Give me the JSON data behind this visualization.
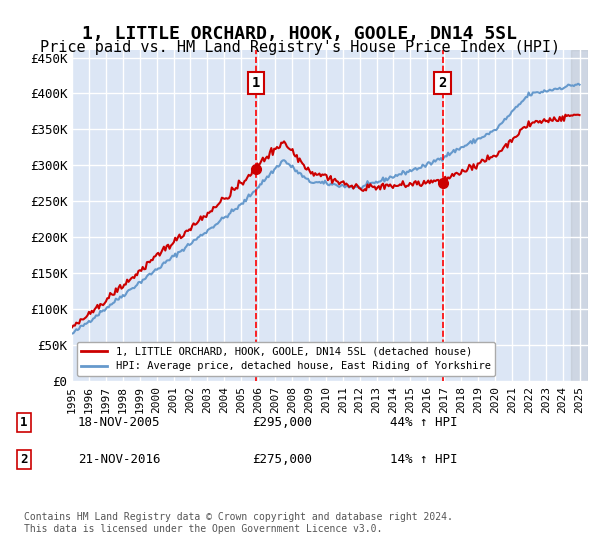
{
  "title": "1, LITTLE ORCHARD, HOOK, GOOLE, DN14 5SL",
  "subtitle": "Price paid vs. HM Land Registry's House Price Index (HPI)",
  "title_fontsize": 13,
  "subtitle_fontsize": 11,
  "ylim": [
    0,
    460000
  ],
  "yticks": [
    0,
    50000,
    100000,
    150000,
    200000,
    250000,
    300000,
    350000,
    400000,
    450000
  ],
  "ytick_labels": [
    "£0",
    "£50K",
    "£100K",
    "£150K",
    "£200K",
    "£250K",
    "£300K",
    "£350K",
    "£400K",
    "£450K"
  ],
  "xlim_start": 1995.5,
  "xlim_end": 2025.5,
  "xtick_years": [
    1995,
    1996,
    1997,
    1998,
    1999,
    2000,
    2001,
    2002,
    2003,
    2004,
    2005,
    2006,
    2007,
    2008,
    2009,
    2010,
    2011,
    2012,
    2013,
    2014,
    2015,
    2016,
    2017,
    2018,
    2019,
    2020,
    2021,
    2022,
    2023,
    2024,
    2025
  ],
  "background_color": "#ffffff",
  "plot_bg_color": "#dce6f5",
  "grid_color": "#ffffff",
  "sale1_x": 2005.88,
  "sale1_y": 295000,
  "sale2_x": 2016.9,
  "sale2_y": 275000,
  "sale1_label": "1",
  "sale2_label": "2",
  "vline1_x": 2005.88,
  "vline2_x": 2016.9,
  "vline_color": "#ff0000",
  "vline_style": "--",
  "legend_line1": "1, LITTLE ORCHARD, HOOK, GOOLE, DN14 5SL (detached house)",
  "legend_line2": "HPI: Average price, detached house, East Riding of Yorkshire",
  "red_line_color": "#cc0000",
  "blue_line_color": "#6699cc",
  "annotation1_date": "18-NOV-2005",
  "annotation1_price": "£295,000",
  "annotation1_pct": "44% ↑ HPI",
  "annotation2_date": "21-NOV-2016",
  "annotation2_price": "£275,000",
  "annotation2_pct": "14% ↑ HPI",
  "footnote": "Contains HM Land Registry data © Crown copyright and database right 2024.\nThis data is licensed under the Open Government Licence v3.0."
}
